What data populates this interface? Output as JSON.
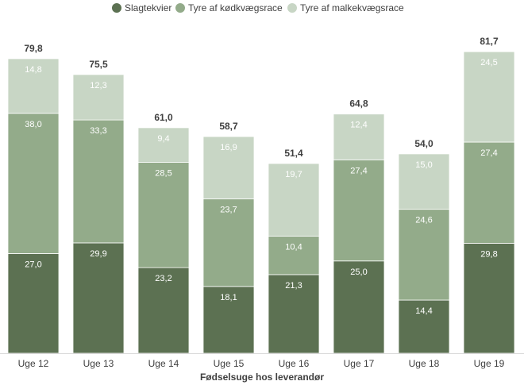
{
  "chart_data": {
    "type": "bar",
    "stacked": true,
    "categories": [
      "Uge 12",
      "Uge 13",
      "Uge 14",
      "Uge 15",
      "Uge 16",
      "Uge 17",
      "Uge 18",
      "Uge 19"
    ],
    "series": [
      {
        "name": "Slagtekvier",
        "color": "#5c7152",
        "values": [
          27.0,
          29.9,
          23.2,
          18.1,
          21.3,
          25.0,
          14.4,
          29.8
        ]
      },
      {
        "name": "Tyre af kødkvægsrace",
        "color": "#93ab8a",
        "values": [
          38.0,
          33.3,
          28.5,
          23.7,
          10.4,
          27.4,
          24.6,
          27.4
        ]
      },
      {
        "name": "Tyre af malkekvægsrace",
        "color": "#c8d6c5",
        "values": [
          14.8,
          12.3,
          9.4,
          16.9,
          19.7,
          12.4,
          15.0,
          24.5
        ]
      }
    ],
    "segment_labels": [
      [
        "27,0",
        "29,9",
        "23,2",
        "18,1",
        "21,3",
        "25,0",
        "14,4",
        "29,8"
      ],
      [
        "38,0",
        "33,3",
        "28,5",
        "23,7",
        "10,4",
        "27,4",
        "24,6",
        "27,4"
      ],
      [
        "14,8",
        "12,3",
        "9,4",
        "16,9",
        "19,7",
        "12,4",
        "15,0",
        "24,5"
      ]
    ],
    "totals": [
      "79,8",
      "75,5",
      "61,0",
      "58,7",
      "51,4",
      "64,8",
      "54,0",
      "81,7"
    ],
    "xlabel": "Fødselsuge hos leverandør",
    "ylabel": "",
    "ylim": [
      0,
      86
    ],
    "grid": false,
    "legend_position": "top"
  }
}
